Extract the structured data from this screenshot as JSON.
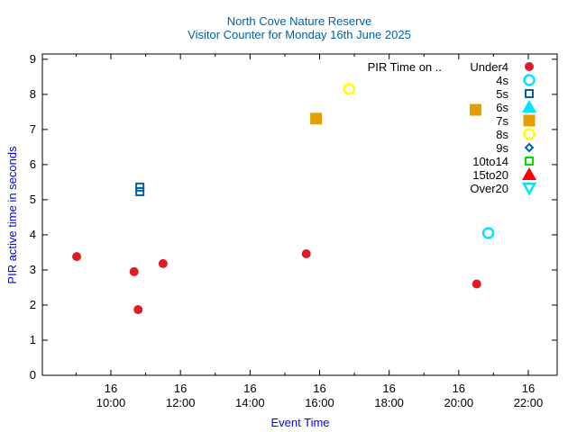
{
  "chart_data": {
    "type": "scatter",
    "title": "North Cove Nature Reserve",
    "subtitle": "Visitor Counter for Monday 16th June 2025",
    "xlabel": "Event Time",
    "ylabel": "PIR active time in seconds",
    "xlim_hours": [
      8.03,
      22.83
    ],
    "ylim": [
      0,
      9.15
    ],
    "yticks": [
      0,
      1,
      2,
      3,
      4,
      5,
      6,
      7,
      8,
      9
    ],
    "xticks": [
      {
        "hour": 10,
        "day": "16",
        "time": "10:00"
      },
      {
        "hour": 12,
        "day": "16",
        "time": "12:00"
      },
      {
        "hour": 14,
        "day": "16",
        "time": "14:00"
      },
      {
        "hour": 16,
        "day": "16",
        "time": "16:00"
      },
      {
        "hour": 18,
        "day": "16",
        "time": "18:00"
      },
      {
        "hour": 20,
        "day": "16",
        "time": "20:00"
      },
      {
        "hour": 22,
        "day": "16",
        "time": "22:00"
      }
    ],
    "legend_title": "PIR Time on ..",
    "legend_position": "top-right",
    "grid": false,
    "series": [
      {
        "name": "Under4",
        "marker": "filled-circle",
        "color": "#dd1c26",
        "points": [
          [
            "09:01",
            3.38
          ],
          [
            "10:40",
            2.95
          ],
          [
            "10:47",
            1.87
          ],
          [
            "11:30",
            3.18
          ],
          [
            "15:37",
            3.46
          ],
          [
            "20:31",
            2.6
          ]
        ]
      },
      {
        "name": "4s",
        "marker": "open-circle",
        "color": "#00e5ff",
        "points": [
          [
            "20:51",
            4.05
          ]
        ]
      },
      {
        "name": "5s",
        "marker": "open-square",
        "color": "#0060ad",
        "points": [
          [
            "10:50",
            5.23
          ],
          [
            "10:50",
            5.36
          ]
        ]
      },
      {
        "name": "6s",
        "marker": "filled-triangle",
        "color": "#00e5ff",
        "points": []
      },
      {
        "name": "7s",
        "marker": "filled-square",
        "color": "#e69f00",
        "points": [
          [
            "15:54",
            7.31
          ],
          [
            "20:29",
            7.56
          ]
        ]
      },
      {
        "name": "8s",
        "marker": "open-circle",
        "color": "#ffff00",
        "points": [
          [
            "16:51",
            8.15
          ]
        ]
      },
      {
        "name": "9s",
        "marker": "open-diamond",
        "color": "#0060ad",
        "points": []
      },
      {
        "name": "10to14",
        "marker": "open-square",
        "color": "#00e000",
        "points": []
      },
      {
        "name": "15to20",
        "marker": "filled-triangle",
        "color": "#ff0000",
        "points": []
      },
      {
        "name": "Over20",
        "marker": "open-triangle-down",
        "color": "#00e5ff",
        "points": []
      }
    ]
  }
}
